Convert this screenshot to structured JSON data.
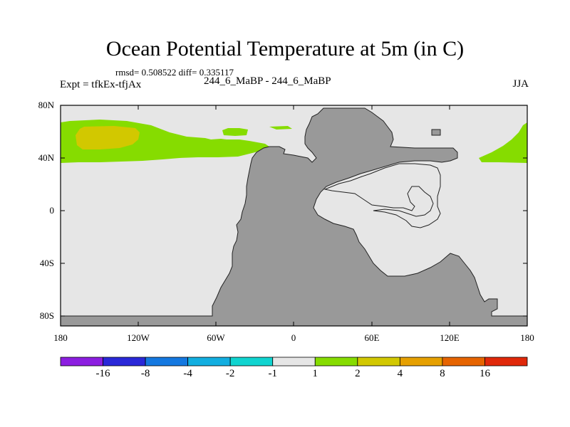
{
  "header": {
    "title": "Ocean Potential Temperature at 5m (in C)",
    "stats": "rmsd= 0.508522 diff= 0.335117",
    "subtitle": "244_6_MaBP - 244_6_MaBP",
    "expt": "Expt = tfkEx-tfjAx",
    "season": "JJA"
  },
  "axes": {
    "lat_labels": [
      "80N",
      "40N",
      "0",
      "40S",
      "80S"
    ],
    "lon_labels": [
      "180",
      "120W",
      "60W",
      "0",
      "60E",
      "120E",
      "180"
    ]
  },
  "colorbar": {
    "colors": [
      "#8c1ee0",
      "#2a28d8",
      "#1478e0",
      "#12aee0",
      "#10d4d0",
      "#e6e6e6",
      "#86dc00",
      "#d2c800",
      "#e6a000",
      "#e66400",
      "#e0280a"
    ],
    "labels": [
      "-16",
      "-8",
      "-4",
      "-2",
      "-1",
      "1",
      "2",
      "4",
      "8",
      "16"
    ]
  },
  "map": {
    "ocean_color": "#e6e6e6",
    "land_color": "#999999",
    "anomaly_bins": [
      "1 to 2",
      "2 to 4"
    ]
  }
}
